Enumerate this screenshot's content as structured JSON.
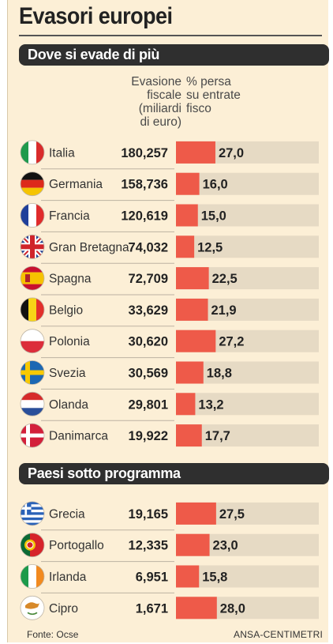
{
  "header": {
    "title": "Evasori europei"
  },
  "columns": {
    "evasion_label": "Evasione fiscale (miliardi di euro)",
    "evasion_lines": [
      "Evasione",
      "fiscale",
      "(miliardi",
      "di euro)"
    ],
    "pct_label": "% persa su entrate fisco",
    "pct_lines": [
      "% persa",
      "su entrate",
      "fisco"
    ]
  },
  "footer": {
    "source": "Fonte: Ocse",
    "credit": "ANSA-CENTIMETRI"
  },
  "colors": {
    "background": "#fcefd6",
    "bar": "#ee5a49",
    "track": "#e6dac4",
    "section": "#2f2f2f",
    "divider": "#bdb2a2"
  },
  "chart_data": {
    "type": "bar",
    "title": "Evasori europei",
    "orientation": "horizontal",
    "value_axis_max": 28.0,
    "groups": [
      {
        "name": "Dove si evade di più",
        "rows": [
          {
            "country": "Italia",
            "flag": "flag-italy-icon",
            "evasion": "180,257",
            "evasion_value": 180.257,
            "pct": "27,0",
            "pct_value": 27.0
          },
          {
            "country": "Germania",
            "flag": "flag-germany-icon",
            "evasion": "158,736",
            "evasion_value": 158.736,
            "pct": "16,0",
            "pct_value": 16.0
          },
          {
            "country": "Francia",
            "flag": "flag-france-icon",
            "evasion": "120,619",
            "evasion_value": 120.619,
            "pct": "15,0",
            "pct_value": 15.0
          },
          {
            "country": "Gran Bretagna",
            "flag": "flag-uk-icon",
            "evasion": "74,032",
            "evasion_value": 74.032,
            "pct": "12,5",
            "pct_value": 12.5
          },
          {
            "country": "Spagna",
            "flag": "flag-spain-icon",
            "evasion": "72,709",
            "evasion_value": 72.709,
            "pct": "22,5",
            "pct_value": 22.5
          },
          {
            "country": "Belgio",
            "flag": "flag-belgium-icon",
            "evasion": "33,629",
            "evasion_value": 33.629,
            "pct": "21,9",
            "pct_value": 21.9
          },
          {
            "country": "Polonia",
            "flag": "flag-poland-icon",
            "evasion": "30,620",
            "evasion_value": 30.62,
            "pct": "27,2",
            "pct_value": 27.2
          },
          {
            "country": "Svezia",
            "flag": "flag-sweden-icon",
            "evasion": "30,569",
            "evasion_value": 30.569,
            "pct": "18,8",
            "pct_value": 18.8
          },
          {
            "country": "Olanda",
            "flag": "flag-netherlands-icon",
            "evasion": "29,801",
            "evasion_value": 29.801,
            "pct": "13,2",
            "pct_value": 13.2
          },
          {
            "country": "Danimarca",
            "flag": "flag-denmark-icon",
            "evasion": "19,922",
            "evasion_value": 19.922,
            "pct": "17,7",
            "pct_value": 17.7
          }
        ]
      },
      {
        "name": "Paesi sotto programma",
        "rows": [
          {
            "country": "Grecia",
            "flag": "flag-greece-icon",
            "evasion": "19,165",
            "evasion_value": 19.165,
            "pct": "27,5",
            "pct_value": 27.5
          },
          {
            "country": "Portogallo",
            "flag": "flag-portugal-icon",
            "evasion": "12,335",
            "evasion_value": 12.335,
            "pct": "23,0",
            "pct_value": 23.0
          },
          {
            "country": "Irlanda",
            "flag": "flag-ireland-icon",
            "evasion": "6,951",
            "evasion_value": 6.951,
            "pct": "15,8",
            "pct_value": 15.8
          },
          {
            "country": "Cipro",
            "flag": "flag-cyprus-icon",
            "evasion": "1,671",
            "evasion_value": 1.671,
            "pct": "28,0",
            "pct_value": 28.0
          }
        ]
      }
    ]
  }
}
